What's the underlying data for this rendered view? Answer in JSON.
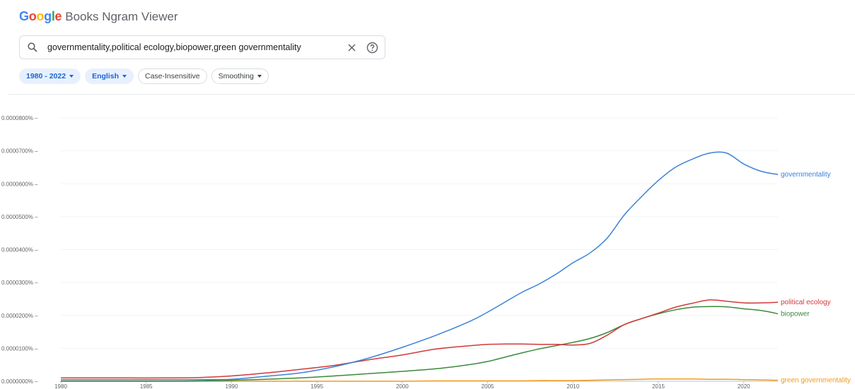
{
  "header": {
    "logo_text": "Google",
    "logo_colors": [
      "#4285f4",
      "#ea4335",
      "#fbbc05",
      "#4285f4",
      "#34a853",
      "#ea4335"
    ],
    "app_name": "Books Ngram Viewer"
  },
  "search": {
    "query": "governmentality,political ecology,biopower,green governmentality",
    "icon": "search-icon",
    "clear_icon": "close-icon",
    "help_icon": "help-icon"
  },
  "filters": {
    "year_range": "1980 - 2022",
    "corpus": "English",
    "case": "Case-Insensitive",
    "smoothing": "Smoothing"
  },
  "chart_data": {
    "type": "line",
    "x": [
      1980,
      1982,
      1984,
      1986,
      1988,
      1990,
      1992,
      1994,
      1996,
      1998,
      2000,
      2002,
      2004,
      2005,
      2006,
      2007,
      2008,
      2009,
      2010,
      2011,
      2012,
      2013,
      2014,
      2015,
      2016,
      2017,
      2018,
      2019,
      2020,
      2021,
      2022
    ],
    "xticks": [
      1980,
      1985,
      1990,
      1995,
      2000,
      2005,
      2010,
      2015,
      2020
    ],
    "yticks": [
      "0.0000000%",
      "0.0000100%",
      "0.0000200%",
      "0.0000300%",
      "0.0000400%",
      "0.0000500%",
      "0.0000600%",
      "0.0000700%",
      "0.0000800%"
    ],
    "ylim": [
      0,
      8e-07
    ],
    "xlim": [
      1980,
      2022
    ],
    "series": [
      {
        "name": "governmentality",
        "color": "#3c82d8",
        "values": [
          5e-09,
          5e-09,
          5e-09,
          5e-09,
          5e-09,
          6e-09,
          1.5e-08,
          2.5e-08,
          4.4e-08,
          7e-08,
          1.03e-07,
          1.4e-07,
          1.83e-07,
          2.1e-07,
          2.4e-07,
          2.7e-07,
          2.95e-07,
          3.25e-07,
          3.6e-07,
          3.9e-07,
          4.35e-07,
          5.05e-07,
          5.6e-07,
          6.1e-07,
          6.5e-07,
          6.75e-07,
          6.93e-07,
          6.93e-07,
          6.6e-07,
          6.38e-07,
          6.28e-07
        ]
      },
      {
        "name": "political ecology",
        "color": "#d13a3a",
        "values": [
          1e-08,
          1e-08,
          1e-08,
          1e-08,
          1.1e-08,
          1.6e-08,
          2.5e-08,
          3.6e-08,
          4.8e-08,
          6.5e-08,
          8e-08,
          9.8e-08,
          1.08e-07,
          1.12e-07,
          1.13e-07,
          1.13e-07,
          1.12e-07,
          1.12e-07,
          1.1e-07,
          1.15e-07,
          1.4e-07,
          1.72e-07,
          1.9e-07,
          2.07e-07,
          2.25e-07,
          2.37e-07,
          2.47e-07,
          2.43e-07,
          2.38e-07,
          2.38e-07,
          2.4e-07
        ]
      },
      {
        "name": "biopower",
        "color": "#3a8a3a",
        "values": [
          0,
          0,
          0,
          0,
          1e-09,
          3e-09,
          6e-09,
          1e-08,
          1.6e-08,
          2.3e-08,
          3e-08,
          3.8e-08,
          5.1e-08,
          6e-08,
          7.3e-08,
          8.6e-08,
          9.8e-08,
          1.08e-07,
          1.18e-07,
          1.3e-07,
          1.48e-07,
          1.72e-07,
          1.9e-07,
          2.05e-07,
          2.17e-07,
          2.25e-07,
          2.27e-07,
          2.26e-07,
          2.2e-07,
          2.15e-07,
          2.05e-07
        ]
      },
      {
        "name": "green governmentality",
        "color": "#f29a20",
        "values": [
          0,
          0,
          0,
          0,
          0,
          0,
          0,
          0,
          0,
          0,
          0,
          1e-09,
          1e-09,
          1e-09,
          1e-09,
          1e-09,
          2e-09,
          2e-09,
          2e-09,
          3e-09,
          4e-09,
          5e-09,
          6e-09,
          7e-09,
          7e-09,
          7e-09,
          6e-09,
          6e-09,
          5e-09,
          4e-09,
          3e-09
        ]
      }
    ]
  }
}
